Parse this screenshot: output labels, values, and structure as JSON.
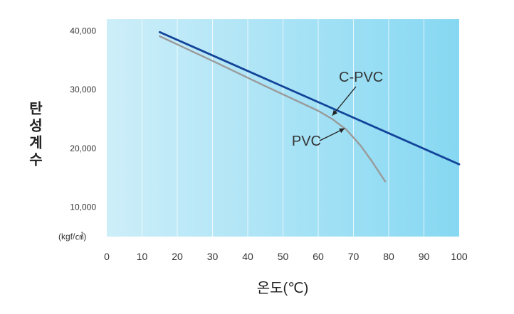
{
  "chart_data": {
    "type": "line",
    "title": "",
    "xlabel": "온도(℃)",
    "ylabel": "탄성계수",
    "yunit": "(kgf/㎠)",
    "xlim": [
      0,
      100
    ],
    "ylim": [
      5000,
      42000
    ],
    "xticks": [
      "0",
      "10",
      "20",
      "30",
      "40",
      "50",
      "60",
      "70",
      "80",
      "90",
      "100"
    ],
    "yticks": [
      {
        "value": 10000,
        "label": "10,000"
      },
      {
        "value": 20000,
        "label": "20,000"
      },
      {
        "value": 30000,
        "label": "30,000"
      },
      {
        "value": 40000,
        "label": "40,000"
      }
    ],
    "grid": true,
    "series": [
      {
        "name": "C-PVC",
        "color": "#12459a",
        "x": [
          15,
          100
        ],
        "y": [
          39800,
          17300
        ]
      },
      {
        "name": "PVC",
        "color": "#9a9a9a",
        "x": [
          15,
          30,
          45,
          60,
          64,
          68,
          72,
          75,
          77,
          79
        ],
        "y": [
          39100,
          34900,
          30600,
          26400,
          25000,
          23200,
          20500,
          18000,
          16200,
          14400
        ]
      }
    ],
    "annotations": [
      {
        "text": "C-PVC",
        "series": "C-PVC",
        "arrow_to": [
          64,
          25600
        ]
      },
      {
        "text": "PVC",
        "series": "PVC",
        "arrow_to": [
          67.5,
          23400
        ]
      }
    ]
  }
}
